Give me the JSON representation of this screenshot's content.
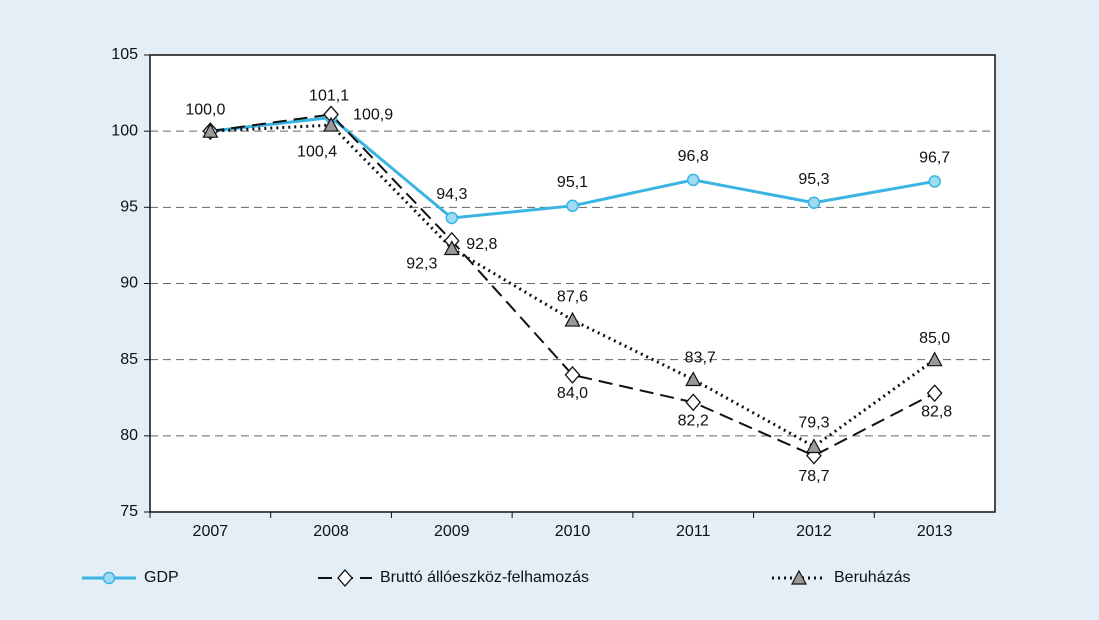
{
  "chart_data": {
    "type": "line",
    "categories": [
      "2007",
      "2008",
      "2009",
      "2010",
      "2011",
      "2012",
      "2013"
    ],
    "series": [
      {
        "name": "GDP",
        "color": "#3ab4e2",
        "marker": "circle",
        "line_style": "solid",
        "values": [
          100.0,
          100.9,
          94.3,
          95.1,
          96.8,
          95.3,
          96.7
        ],
        "value_labels": [
          "100,0",
          "100,9",
          "94,3",
          "95,1",
          "96,8",
          "95,3",
          "96,7"
        ]
      },
      {
        "name": "Bruttó állóeszköz-felhamozás",
        "color": "#111111",
        "marker": "diamond",
        "line_style": "dashed",
        "values": [
          100.0,
          101.1,
          92.8,
          84.0,
          82.2,
          78.7,
          82.8
        ],
        "value_labels": [
          null,
          "101,1",
          "92,8",
          "84,0",
          "82,2",
          "78,7",
          "82,8"
        ]
      },
      {
        "name": "Beruházás",
        "color": "#111111",
        "marker": "triangle",
        "line_style": "dotted",
        "values": [
          100.0,
          100.4,
          92.3,
          87.6,
          83.7,
          79.3,
          85.0
        ],
        "value_labels": [
          null,
          "100,4",
          "92,3",
          "87,6",
          "83,7",
          "79,3",
          "85,0"
        ]
      }
    ],
    "ylim": [
      75,
      105
    ],
    "yticks": [
      75,
      80,
      85,
      90,
      95,
      100,
      105
    ],
    "grid": true
  }
}
